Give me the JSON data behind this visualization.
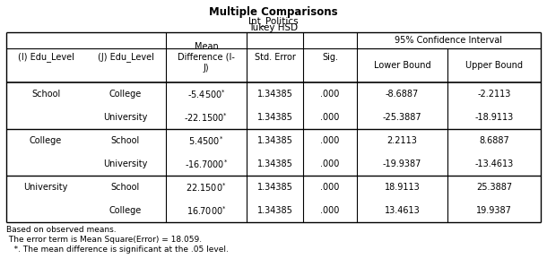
{
  "title": "Multiple Comparisons",
  "subtitle1": "Int_Politics",
  "subtitle2": "Tukey HSD",
  "ci_header": "95% Confidence Interval",
  "rows": [
    [
      "School",
      "College",
      "-5.4500*",
      "1.34385",
      ".000",
      "-8.6887",
      "-2.2113"
    ],
    [
      "",
      "University",
      "-22.1500*",
      "1.34385",
      ".000",
      "-25.3887",
      "-18.9113"
    ],
    [
      "College",
      "School",
      "5.4500*",
      "1.34385",
      ".000",
      "2.2113",
      "8.6887"
    ],
    [
      "",
      "University",
      "-16.7000*",
      "1.34385",
      ".000",
      "-19.9387",
      "-13.4613"
    ],
    [
      "University",
      "School",
      "22.1500*",
      "1.34385",
      ".000",
      "18.9113",
      "25.3887"
    ],
    [
      "",
      "College",
      "16.7000*",
      "1.34385",
      ".000",
      "13.4613",
      "19.9387"
    ]
  ],
  "footnote1": "Based on observed means.",
  "footnote2": " The error term is Mean Square(Error) = 18.059.",
  "footnote3": "   *. The mean difference is significant at the .05 level.",
  "bg_color": "#ffffff",
  "fs": 7.0,
  "title_fs": 8.5
}
